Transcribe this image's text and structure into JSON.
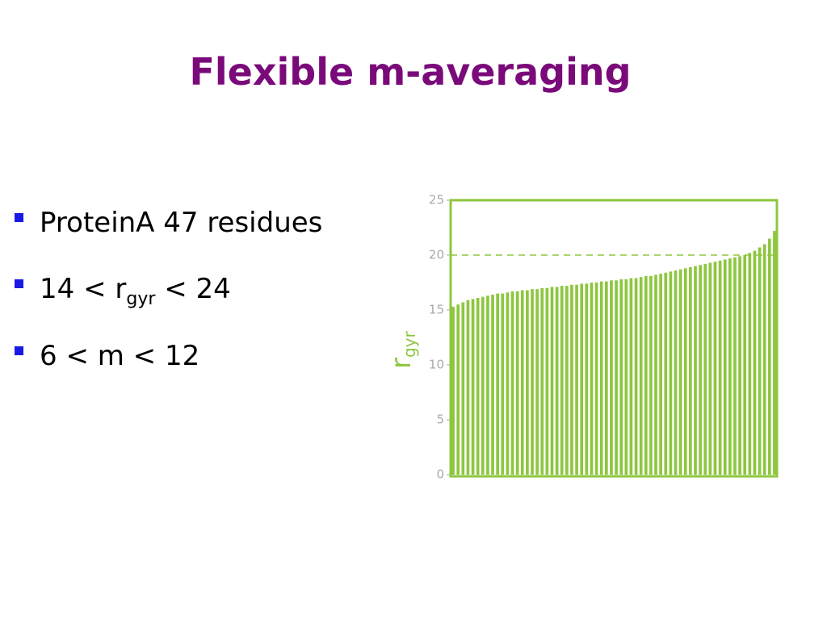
{
  "header": {
    "title": "Flexible m-averaging"
  },
  "bullets": [
    {
      "text": "ProteinA 47 residues"
    },
    {
      "before": "14 < r",
      "sub": "gyr",
      "after": " < 24"
    },
    {
      "text": "6 < m < 12"
    }
  ],
  "chart_data": {
    "type": "bar",
    "ylabel": "r",
    "ylabel_sub": "gyr",
    "color": "#8dc63f",
    "values": [
      15.3,
      15.5,
      15.7,
      15.9,
      16.0,
      16.1,
      16.2,
      16.3,
      16.4,
      16.5,
      16.5,
      16.6,
      16.7,
      16.7,
      16.8,
      16.8,
      16.9,
      16.9,
      17.0,
      17.0,
      17.1,
      17.1,
      17.2,
      17.2,
      17.3,
      17.3,
      17.4,
      17.4,
      17.5,
      17.5,
      17.6,
      17.6,
      17.7,
      17.7,
      17.8,
      17.8,
      17.9,
      17.9,
      18.0,
      18.1,
      18.1,
      18.2,
      18.3,
      18.4,
      18.5,
      18.6,
      18.7,
      18.8,
      18.9,
      19.0,
      19.1,
      19.2,
      19.3,
      19.4,
      19.5,
      19.6,
      19.7,
      19.8,
      19.9,
      20.0,
      20.2,
      20.4,
      20.7,
      21.0,
      21.5,
      22.2
    ],
    "ylim": [
      0,
      25
    ],
    "yticks": [
      0,
      5,
      10,
      15,
      20,
      25
    ],
    "reference_line": 20
  }
}
